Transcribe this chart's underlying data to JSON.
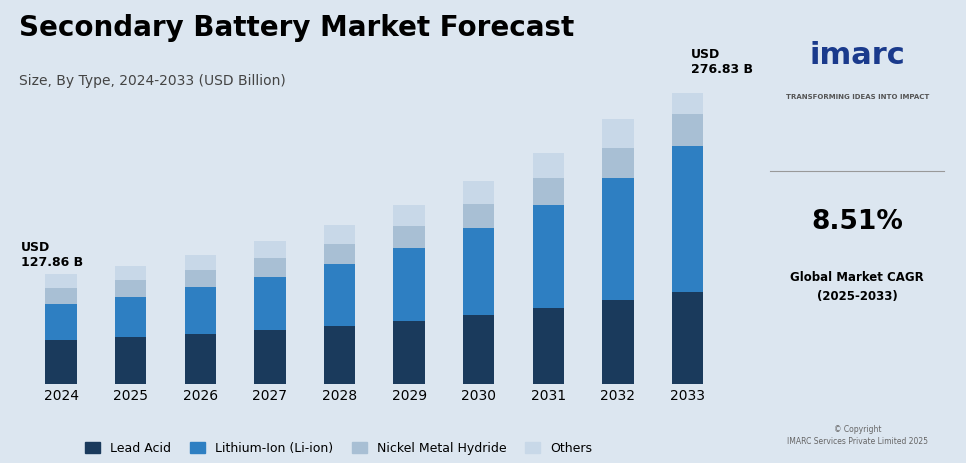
{
  "title": "Secondary Battery Market Forecast",
  "subtitle": "Size, By Type, 2024-2033 (USD Billion)",
  "years": [
    "2024",
    "2025",
    "2026",
    "2027",
    "2028",
    "2029",
    "2030",
    "2031",
    "2032",
    "2033"
  ],
  "series": {
    "Lead Acid": [
      52,
      55,
      59,
      63,
      68,
      74,
      81,
      89,
      98,
      108
    ],
    "Lithium-Ion (Li-ion)": [
      42,
      47,
      54,
      62,
      72,
      85,
      101,
      120,
      143,
      170
    ],
    "Nickel Metal Hydride": [
      18,
      19,
      20,
      22,
      24,
      26,
      28,
      31,
      34,
      37
    ],
    "Others": [
      16,
      17,
      18,
      20,
      22,
      24,
      27,
      30,
      34,
      38
    ]
  },
  "colors": {
    "Lead Acid": "#1a3a5c",
    "Lithium-Ion (Li-ion)": "#2e7fc2",
    "Nickel Metal Hydride": "#a8bfd4",
    "Others": "#c8d8e8"
  },
  "legend_labels": [
    "Lead Acid",
    "Lithium-Ion (Li-ion)",
    "Nickel Metal Hydride",
    "Others"
  ],
  "background_color": "#dce6f0",
  "title_fontsize": 20,
  "subtitle_fontsize": 10,
  "axis_fontsize": 10,
  "legend_fontsize": 9
}
